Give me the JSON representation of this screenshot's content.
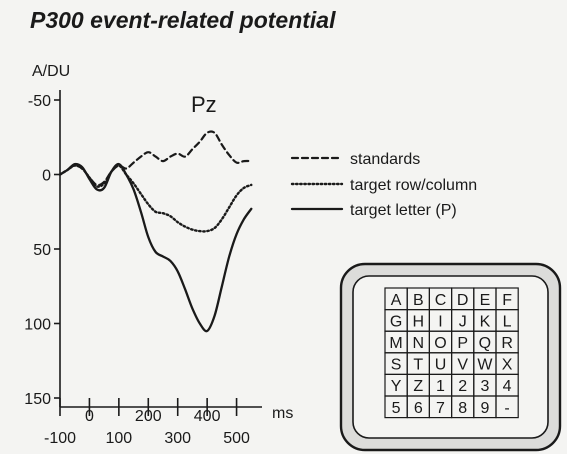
{
  "chart_data": {
    "type": "line",
    "title": "P300 event-related potential",
    "channel": "Pz",
    "ylabel": "A/DU",
    "xlabel": "ms",
    "ylim": [
      -50,
      150
    ],
    "y_inverted": true,
    "y_ticks": [
      -50,
      0,
      50,
      100,
      150
    ],
    "y_tick_labels": [
      "-50",
      "0",
      "50",
      "100",
      "150"
    ],
    "xlim": [
      -100,
      600
    ],
    "x_ticks_upper": [
      0,
      200,
      400
    ],
    "x_tick_labels_upper": [
      "0",
      "200",
      "400"
    ],
    "x_ticks_lower": [
      -100,
      100,
      300,
      500
    ],
    "x_tick_labels_lower": [
      "-100",
      "100",
      "300",
      "500"
    ],
    "legend_position": "right",
    "series": [
      {
        "name": "standards",
        "style": "dashed",
        "x": [
          -100,
          -75,
          -50,
          -25,
          0,
          25,
          50,
          75,
          100,
          125,
          150,
          175,
          200,
          225,
          250,
          275,
          300,
          325,
          350,
          375,
          400,
          425,
          450,
          475,
          500,
          525,
          550
        ],
        "y": [
          0,
          -3,
          -6,
          -4,
          2,
          7,
          5,
          -2,
          -6,
          -4,
          -8,
          -12,
          -15,
          -12,
          -9,
          -12,
          -14,
          -12,
          -17,
          -22,
          -28,
          -28,
          -20,
          -13,
          -8,
          -9,
          -9
        ]
      },
      {
        "name": "target row/column",
        "style": "dotted",
        "x": [
          -100,
          -75,
          -50,
          -25,
          0,
          25,
          50,
          75,
          100,
          125,
          150,
          175,
          200,
          225,
          250,
          275,
          300,
          325,
          350,
          375,
          400,
          425,
          450,
          475,
          500,
          525,
          550
        ],
        "y": [
          0,
          -3,
          -6,
          -4,
          2,
          8,
          6,
          -2,
          -6,
          0,
          6,
          13,
          20,
          25,
          26,
          28,
          32,
          35,
          37,
          38,
          38,
          36,
          30,
          22,
          14,
          9,
          7
        ]
      },
      {
        "name": "target letter (P)",
        "style": "solid",
        "x": [
          -100,
          -75,
          -50,
          -25,
          0,
          25,
          50,
          75,
          100,
          125,
          150,
          175,
          200,
          225,
          250,
          275,
          300,
          325,
          350,
          375,
          400,
          425,
          450,
          475,
          500,
          525,
          550
        ],
        "y": [
          0,
          -3,
          -7,
          -5,
          3,
          10,
          9,
          -2,
          -7,
          0,
          10,
          25,
          42,
          52,
          55,
          58,
          65,
          77,
          90,
          100,
          105,
          95,
          75,
          55,
          40,
          30,
          23
        ]
      }
    ]
  },
  "speller_grid": {
    "rows": [
      [
        "A",
        "B",
        "C",
        "D",
        "E",
        "F"
      ],
      [
        "G",
        "H",
        "I",
        "J",
        "K",
        "L"
      ],
      [
        "M",
        "N",
        "O",
        "P",
        "Q",
        "R"
      ],
      [
        "S",
        "T",
        "U",
        "V",
        "W",
        "X"
      ],
      [
        "Y",
        "Z",
        "1",
        "2",
        "3",
        "4"
      ],
      [
        "5",
        "6",
        "7",
        "8",
        "9",
        "-"
      ]
    ]
  }
}
